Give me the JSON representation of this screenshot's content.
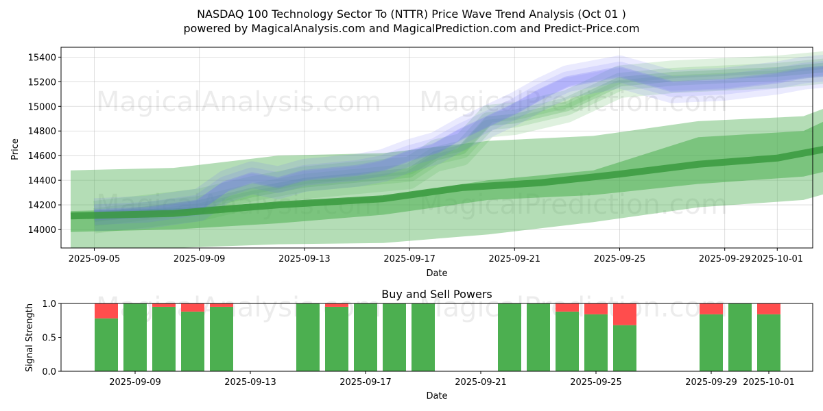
{
  "chart_data": [
    {
      "type": "area",
      "title_line1": "NASDAQ 100 Technology Sector To (NTTR) Price Wave Trend Analysis (Oct 01 )",
      "title_line2": "powered by MagicalAnalysis.com and MagicalPrediction.com and Predict-Price.com",
      "xlabel": "Date",
      "ylabel": "Price",
      "ylim": [
        13850,
        15480
      ],
      "x_tick_labels": [
        "2025-09-05",
        "2025-09-09",
        "2025-09-13",
        "2025-09-17",
        "2025-09-21",
        "2025-09-25",
        "2025-09-29",
        "2025-10-01"
      ],
      "y_tick_labels": [
        "14000",
        "14200",
        "14400",
        "14600",
        "14800",
        "15000",
        "15200",
        "15400"
      ],
      "y_ticks": [
        14000,
        14200,
        14400,
        14600,
        14800,
        15000,
        15200,
        15400
      ],
      "watermarks": [
        "MagicalAnalysis.com",
        "MagicalPrediction.com",
        "MagicalAnalysis.com",
        "MagicalPrediction.com"
      ],
      "series": [
        {
          "name": "prediction-wide-band",
          "color": "#4caf50",
          "x": [
            -0.9,
            3.0,
            7.0,
            11.0,
            15.0,
            19.0,
            23.0,
            27.0,
            28.0,
            29.0
          ],
          "upper": [
            14480,
            14500,
            14600,
            14620,
            14720,
            14760,
            14880,
            14920,
            15000,
            15020
          ],
          "lower": [
            13850,
            13850,
            13880,
            13890,
            13960,
            14060,
            14180,
            14240,
            14300,
            14350
          ]
        },
        {
          "name": "prediction-mid-band",
          "color": "#4caf50",
          "x": [
            -0.9,
            3.0,
            7.0,
            11.0,
            15.0,
            19.0,
            23.0,
            27.0,
            28.0,
            29.0
          ],
          "upper": [
            14150,
            14170,
            14220,
            14270,
            14400,
            14480,
            14750,
            14800,
            14900,
            15000
          ],
          "lower": [
            13980,
            14000,
            14050,
            14120,
            14240,
            14280,
            14370,
            14430,
            14480,
            14540
          ]
        },
        {
          "name": "prediction-center-line",
          "color": "#3a9a3e",
          "x": [
            -0.9,
            3.0,
            7.0,
            11.0,
            14.0,
            17.0,
            20.0,
            23.0,
            26.0,
            29.0
          ],
          "values": [
            14110,
            14130,
            14200,
            14250,
            14340,
            14380,
            14450,
            14530,
            14580,
            14700
          ]
        },
        {
          "name": "price-wave-blue",
          "color": "#6a6af5",
          "x": [
            0,
            2,
            4,
            5,
            6,
            7,
            8,
            10,
            11,
            12,
            13,
            14,
            16,
            17,
            18,
            20,
            22,
            24,
            26,
            27,
            28
          ],
          "values": [
            14120,
            14140,
            14200,
            14350,
            14420,
            14380,
            14440,
            14480,
            14520,
            14600,
            14660,
            14780,
            14980,
            15100,
            15200,
            15280,
            15160,
            15180,
            15230,
            15270,
            15290
          ]
        },
        {
          "name": "price-wave-green",
          "color": "#4caf50",
          "x": [
            0,
            2,
            4,
            6,
            8,
            10,
            12,
            13,
            14,
            15,
            16,
            18,
            20,
            22,
            24,
            26,
            28
          ],
          "values": [
            14100,
            14150,
            14200,
            14300,
            14380,
            14420,
            14460,
            14600,
            14650,
            14880,
            14900,
            15000,
            15200,
            15240,
            15260,
            15280,
            15320
          ]
        }
      ]
    },
    {
      "type": "bar",
      "title": "Buy and Sell Powers",
      "xlabel": "Date",
      "ylabel": "Signal Strength",
      "ylim": [
        0,
        1
      ],
      "y_tick_labels": [
        "0.0",
        "0.5",
        "1.0"
      ],
      "y_ticks": [
        0.0,
        0.5,
        1.0
      ],
      "x_tick_labels": [
        "2025-09-09",
        "2025-09-13",
        "2025-09-17",
        "2025-09-21",
        "2025-09-25",
        "2025-09-29",
        "2025-10-01"
      ],
      "buy_color": "#4caf50",
      "sell_color": "#ff4d4d",
      "series": [
        {
          "name": "Buy",
          "x": [
            0,
            1,
            2,
            3,
            4,
            7,
            8,
            9,
            10,
            11,
            14,
            15,
            16,
            17,
            18,
            21,
            22,
            23
          ],
          "values": [
            0.78,
            1.0,
            0.95,
            0.88,
            0.95,
            1.0,
            0.95,
            1.0,
            1.0,
            1.0,
            1.0,
            1.0,
            0.88,
            0.84,
            0.68,
            0.84,
            1.0,
            0.84
          ]
        },
        {
          "name": "Sell",
          "x": [
            0,
            1,
            2,
            3,
            4,
            7,
            8,
            9,
            10,
            11,
            14,
            15,
            16,
            17,
            18,
            21,
            22,
            23
          ],
          "values": [
            0.22,
            0.0,
            0.05,
            0.12,
            0.05,
            0.0,
            0.05,
            0.0,
            0.0,
            0.0,
            0.0,
            0.0,
            0.12,
            0.16,
            0.32,
            0.16,
            0.0,
            0.16
          ]
        }
      ]
    }
  ]
}
